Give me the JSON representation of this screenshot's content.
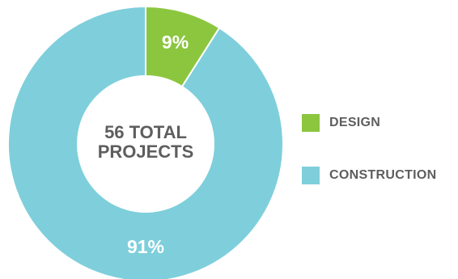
{
  "chart_data": {
    "type": "pie",
    "donut": true,
    "center_label": [
      "56 TOTAL",
      "PROJECTS"
    ],
    "slices": [
      {
        "name": "DESIGN",
        "value": 9,
        "label": "9%",
        "color": "#8cc63f"
      },
      {
        "name": "CONSTRUCTION",
        "value": 91,
        "label": "91%",
        "color": "#7ecfdb"
      }
    ],
    "legend_position": "right",
    "start_angle": "top, clockwise"
  },
  "legend": {
    "items": [
      {
        "label": "DESIGN",
        "color": "#8cc63f"
      },
      {
        "label": "CONSTRUCTION",
        "color": "#7ecfdb"
      }
    ]
  }
}
